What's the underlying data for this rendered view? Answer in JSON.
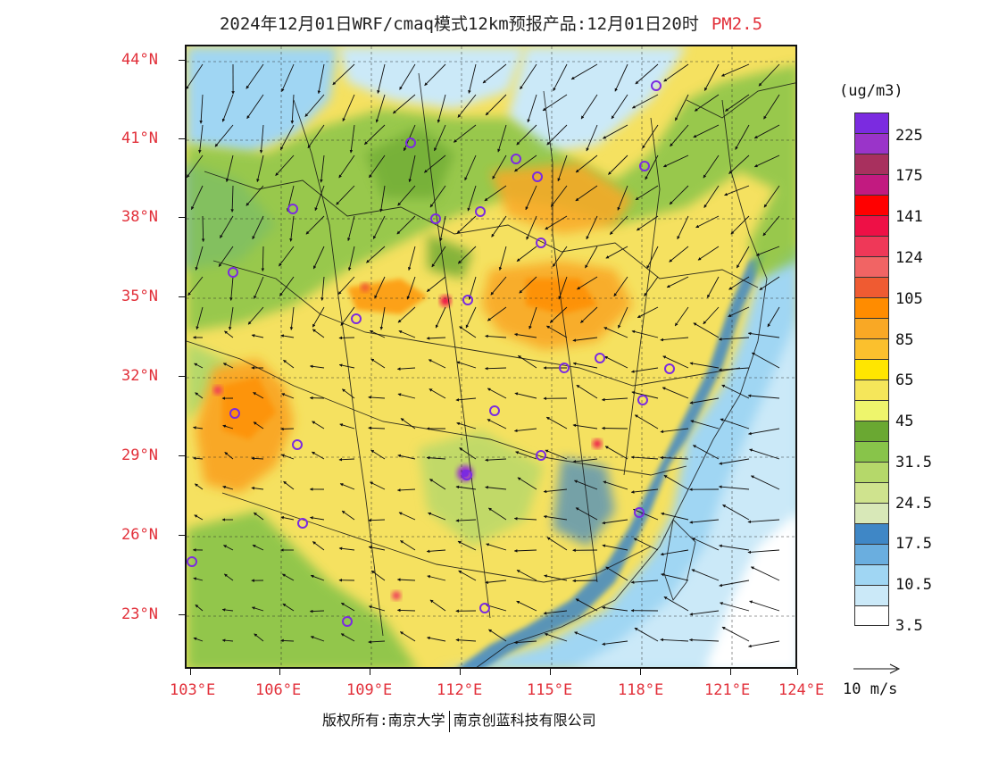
{
  "title": {
    "text": "2024年12月01日WRF/cmaq模式12km预报产品:12月01日20时",
    "pollutant": "PM2.5",
    "pollutant_color": "#e2303a"
  },
  "axes": {
    "lat_labels": [
      "44°N",
      "41°N",
      "38°N",
      "35°N",
      "32°N",
      "29°N",
      "26°N",
      "23°N"
    ],
    "lon_labels": [
      "103°E",
      "106°E",
      "109°E",
      "112°E",
      "115°E",
      "118°E",
      "121°E",
      "124°E"
    ],
    "label_color": "#e2303a"
  },
  "legend": {
    "unit": "(ug/m3)",
    "colors": [
      "#7b2be0",
      "#9a34c9",
      "#a8305e",
      "#c21a80",
      "#ff0000",
      "#ee1046",
      "#ef3858",
      "#f16464",
      "#ef5b32",
      "#ff8c00",
      "#f9a825",
      "#fbc02d",
      "#ffe600",
      "#f5e65a",
      "#eef56c",
      "#6aa832",
      "#88c44a",
      "#b5d86a",
      "#cfe38e",
      "#d8e8b8",
      "#3f87c6",
      "#6aaedf",
      "#a0d6f3",
      "#cbe9f8",
      "#ffffff"
    ],
    "labels": [
      "225",
      "175",
      "141",
      "124",
      "105",
      "85",
      "65",
      "45",
      "31.5",
      "24.5",
      "17.5",
      "10.5",
      "3.5"
    ],
    "wind_ref": "10 m/s"
  },
  "footer": {
    "copyright": "版权所有:南京大学",
    "company": "南京创蓝科技有限公司"
  },
  "map": {
    "background": "PM2.5 concentration field with wind vectors over China",
    "stations": 26
  }
}
